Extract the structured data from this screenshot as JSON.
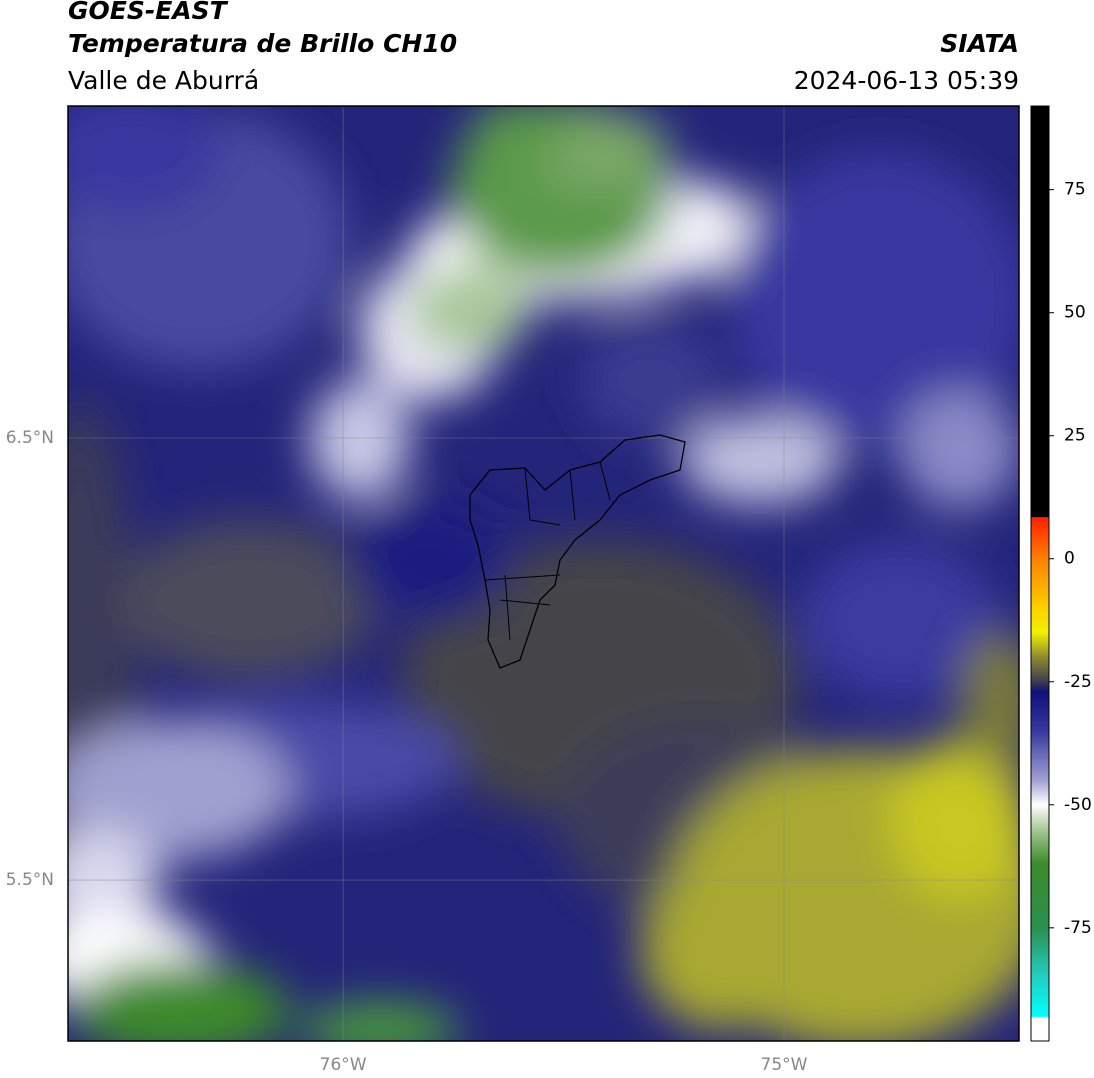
{
  "header": {
    "title": "GOES-EAST",
    "subtitle": "Temperatura de Brillo CH10",
    "source": "SIATA",
    "region": "Valle de Aburrá",
    "datetime": "2024-06-13 05:39"
  },
  "map": {
    "xlim": [
      -76.624,
      -74.467
    ],
    "ylim": [
      5.136,
      7.251
    ],
    "xticks": [
      {
        "value": -76,
        "label": "76°W"
      },
      {
        "value": -75,
        "label": "75°W"
      }
    ],
    "yticks": [
      {
        "value": 6.5,
        "label": "6.5°N"
      },
      {
        "value": 5.5,
        "label": "5.5°N"
      }
    ],
    "grid": true
  },
  "colorbar": {
    "lim": [
      -98,
      92
    ],
    "ticks": [
      75,
      50,
      25,
      0,
      -25,
      -50,
      -75
    ],
    "stops": [
      {
        "value": 92,
        "color": "#000000"
      },
      {
        "value": 8.5,
        "color": "#000000"
      },
      {
        "value": 8.4,
        "color": "#ff2000"
      },
      {
        "value": 0,
        "color": "#ff8000"
      },
      {
        "value": -10,
        "color": "#ffd000"
      },
      {
        "value": -15,
        "color": "#f0f000"
      },
      {
        "value": -20,
        "color": "#8c8c30"
      },
      {
        "value": -25,
        "color": "#3c3c50"
      },
      {
        "value": -27,
        "color": "#10107a"
      },
      {
        "value": -35,
        "color": "#3838a0"
      },
      {
        "value": -45,
        "color": "#a0a0d0"
      },
      {
        "value": -50,
        "color": "#ffffff"
      },
      {
        "value": -55,
        "color": "#a8c898"
      },
      {
        "value": -62,
        "color": "#3c8a2a"
      },
      {
        "value": -75,
        "color": "#2a9050"
      },
      {
        "value": -85,
        "color": "#20d0c0"
      },
      {
        "value": -93,
        "color": "#00ffff"
      },
      {
        "value": -93.3,
        "color": "#ffffff"
      },
      {
        "value": -98,
        "color": "#ffffff"
      }
    ]
  }
}
